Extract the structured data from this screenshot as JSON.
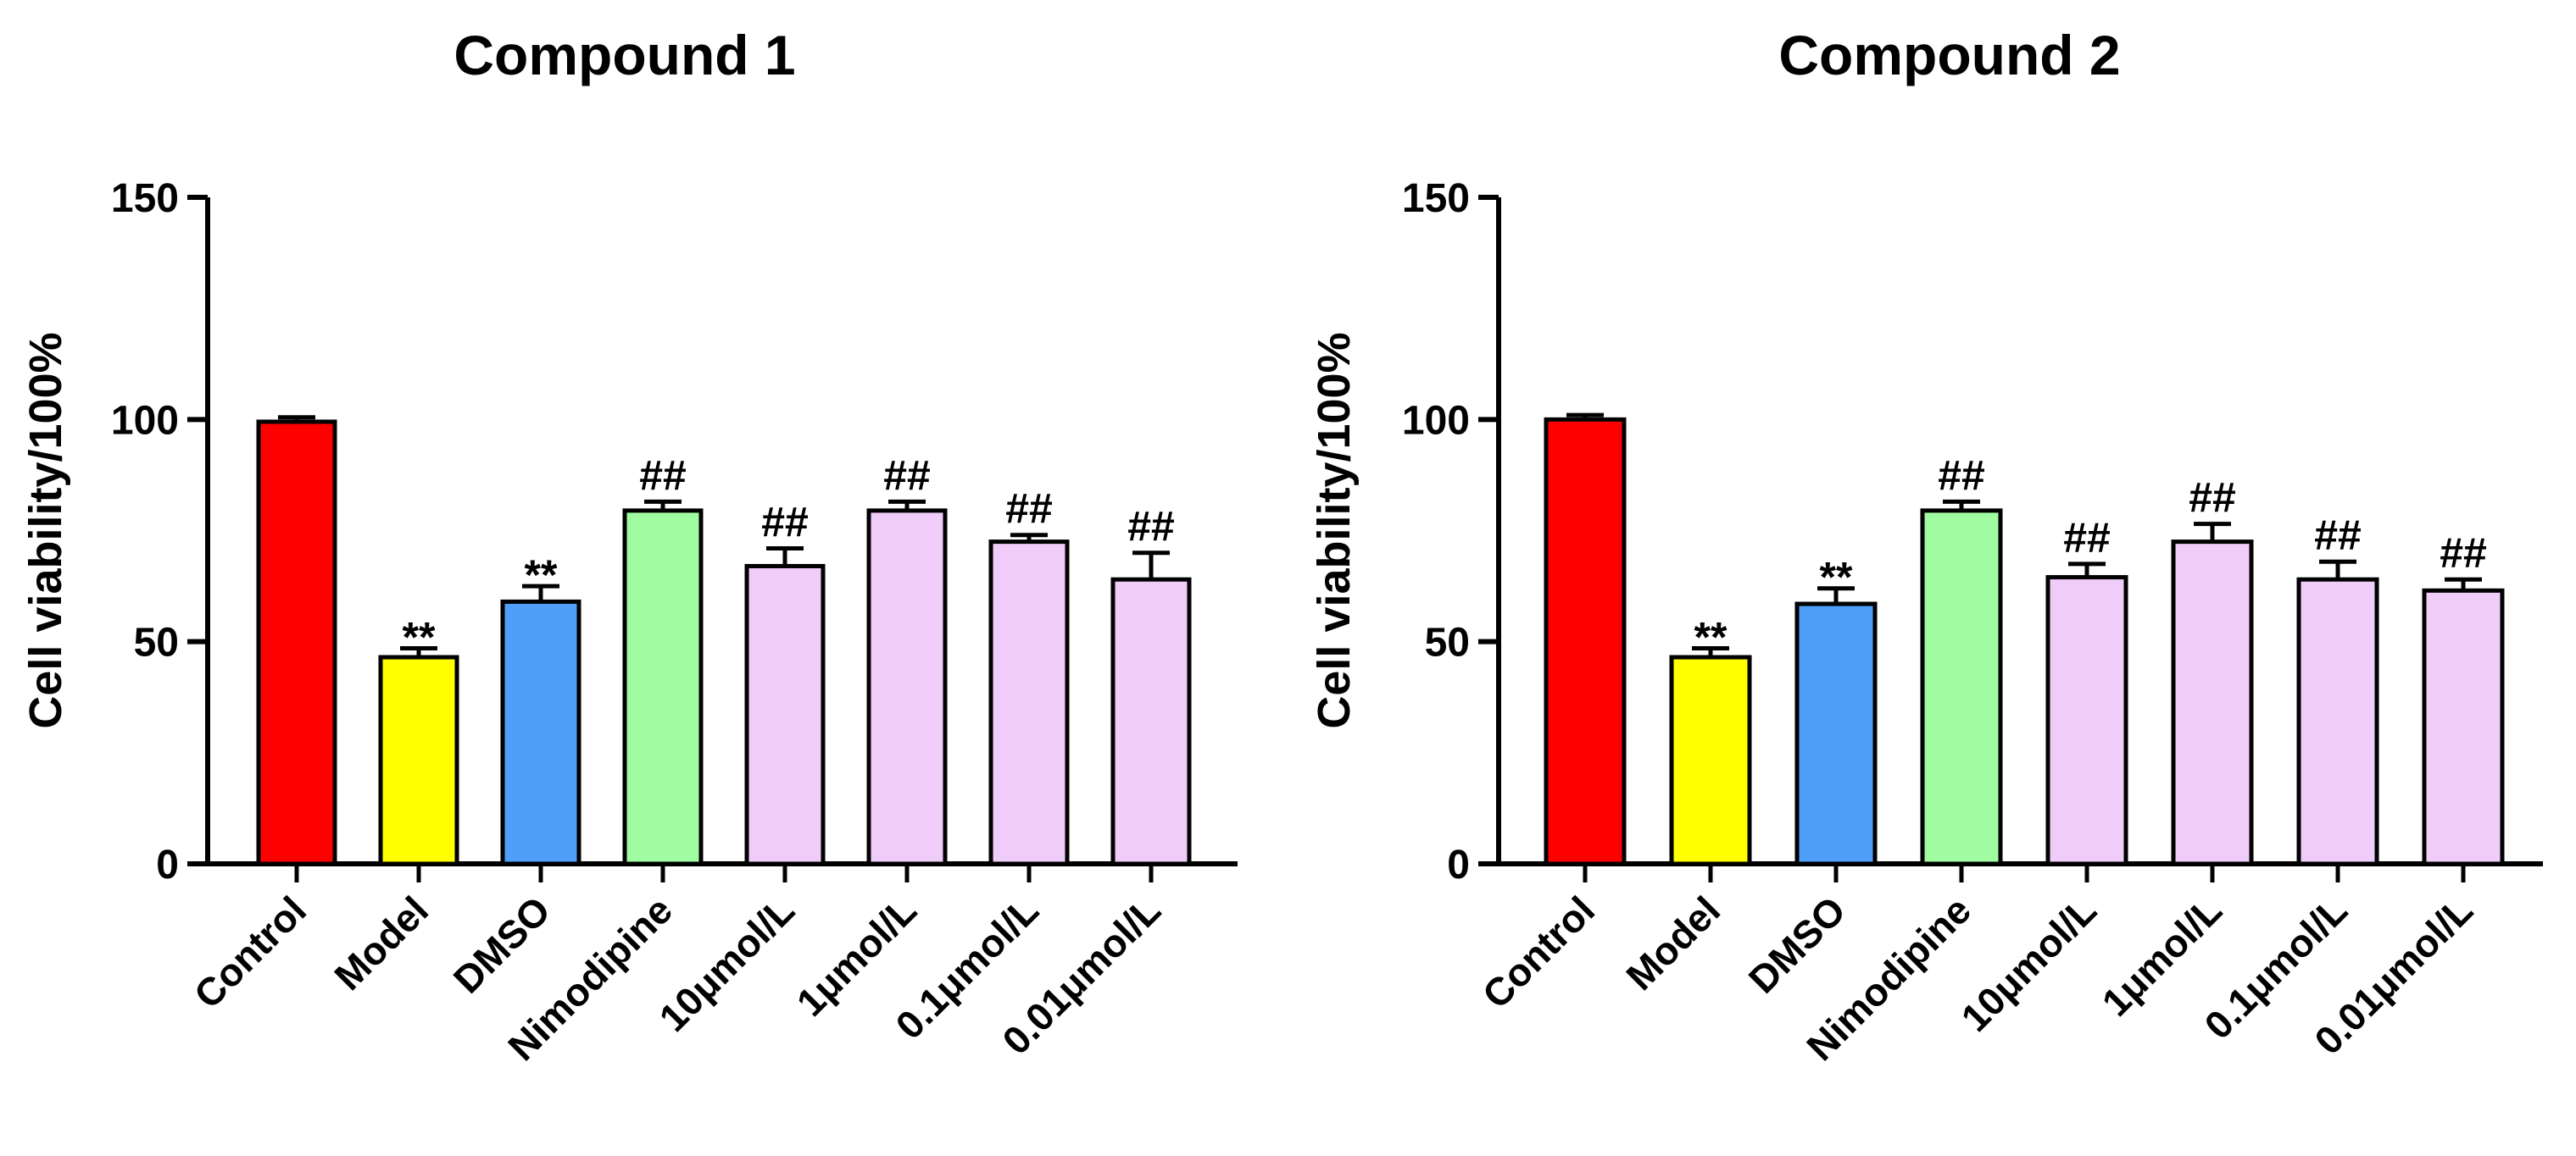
{
  "chart_data": [
    {
      "type": "bar",
      "title": "Compound 1",
      "xlabel": "",
      "ylabel": "Cell viability/100%",
      "ylim": [
        0,
        150
      ],
      "yticks": [
        0,
        50,
        100,
        150
      ],
      "categories": [
        "Control",
        "Model",
        "DMSO",
        "Nimodipine",
        "10μmol/L",
        "1μmol/L",
        "0.1μmol/L",
        "0.01μmol/L"
      ],
      "values": [
        99.5,
        46.5,
        59,
        79.5,
        67,
        79.5,
        72.5,
        64
      ],
      "errors": [
        1,
        2,
        3.5,
        2,
        4,
        2,
        1.5,
        6
      ],
      "colors": [
        "#ff0000",
        "#ffff00",
        "#4f9ef8",
        "#a0fca0",
        "#f0ccf8",
        "#f0ccf8",
        "#f0ccf8",
        "#f0ccf8"
      ],
      "annotations": [
        "",
        "**",
        "**",
        "##",
        "##",
        "##",
        "##",
        "##"
      ]
    },
    {
      "type": "bar",
      "title": "Compound 2",
      "xlabel": "",
      "ylabel": "Cell viability/100%",
      "ylim": [
        0,
        150
      ],
      "yticks": [
        0,
        50,
        100,
        150
      ],
      "categories": [
        "Control",
        "Model",
        "DMSO",
        "Nimodipine",
        "10μmol/L",
        "1μmol/L",
        "0.1μmol/L",
        "0.01μmol/L"
      ],
      "values": [
        100,
        46.5,
        58.5,
        79.5,
        64.5,
        72.5,
        64,
        61.5
      ],
      "errors": [
        1,
        2,
        3.5,
        2,
        3,
        4,
        4,
        2.5
      ],
      "colors": [
        "#ff0000",
        "#ffff00",
        "#4f9ef8",
        "#a0fca0",
        "#f0ccf8",
        "#f0ccf8",
        "#f0ccf8",
        "#f0ccf8"
      ],
      "annotations": [
        "",
        "**",
        "**",
        "##",
        "##",
        "##",
        "##",
        "##"
      ]
    }
  ]
}
